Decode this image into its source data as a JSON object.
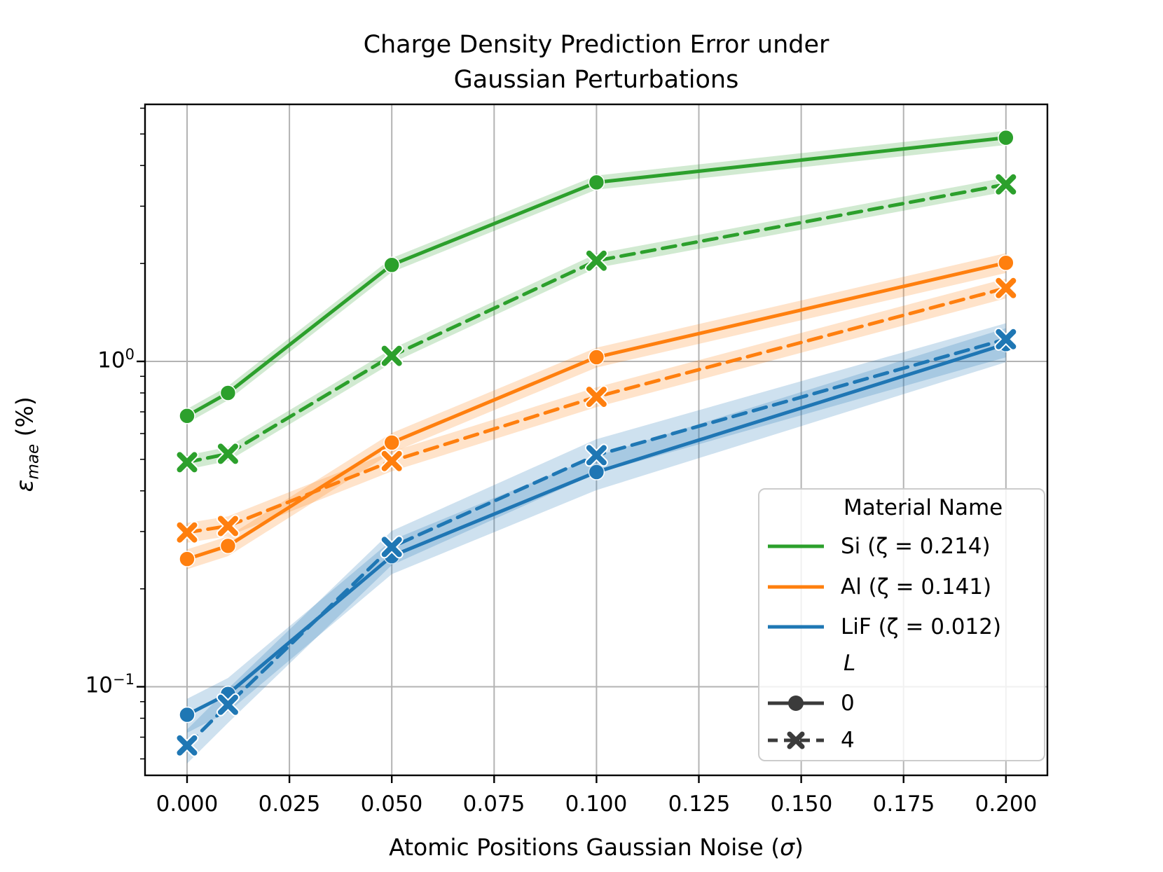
{
  "title": {
    "line1": "Charge Density Prediction Error under",
    "line2": "Gaussian Perturbations"
  },
  "axes": {
    "xlabel_prefix": "Atomic Positions Gaussian Noise (",
    "xlabel_sigma": "σ",
    "xlabel_suffix": ")",
    "ylabel_epsilon": "ε",
    "ylabel_sub": "mae",
    "ylabel_units": " (%)",
    "x_ticks": [
      "0.000",
      "0.025",
      "0.050",
      "0.075",
      "0.100",
      "0.125",
      "0.150",
      "0.175",
      "0.200"
    ],
    "x_tick_values": [
      0.0,
      0.025,
      0.05,
      0.075,
      0.1,
      0.125,
      0.15,
      0.175,
      0.2
    ],
    "y_ticks": [
      {
        "base": "10",
        "exp": "0",
        "value": 1.0
      },
      {
        "base": "10",
        "exp": "−1",
        "value": 0.1
      }
    ],
    "y_tick_values": [
      1.0,
      0.1
    ],
    "y_scale": "log",
    "xlim": [
      -0.01,
      0.21
    ],
    "ylim": [
      0.054,
      6.2
    ],
    "grid": true
  },
  "chart_data": {
    "type": "line",
    "x_label": "Atomic Positions Gaussian Noise (σ)",
    "y_label": "ε_mae (%)",
    "x_values": [
      0.0,
      0.01,
      0.05,
      0.1,
      0.2
    ],
    "materials": [
      {
        "name": "Si",
        "zeta": 0.214,
        "legend_label": "Si (ζ = 0.214)",
        "color": "#2ca02c",
        "band_ratio": 0.05,
        "L0": [
          0.68,
          0.8,
          1.98,
          3.55,
          4.87
        ],
        "L4": [
          0.49,
          0.52,
          1.04,
          2.04,
          3.5
        ]
      },
      {
        "name": "Al",
        "zeta": 0.141,
        "legend_label": "Al (ζ = 0.141)",
        "color": "#ff7f0e",
        "band_ratio": 0.07,
        "L0": [
          0.247,
          0.271,
          0.563,
          1.03,
          2.01
        ],
        "L4": [
          0.298,
          0.312,
          0.494,
          0.778,
          1.68
        ]
      },
      {
        "name": "LiF",
        "zeta": 0.012,
        "legend_label": "LiF (ζ = 0.012)",
        "color": "#1f77b4",
        "band_ratio": 0.12,
        "L0": [
          0.082,
          0.095,
          0.252,
          0.457,
          1.13
        ],
        "L4": [
          0.066,
          0.088,
          0.269,
          0.515,
          1.17
        ]
      }
    ],
    "line_styles": {
      "L0": {
        "label": "0",
        "linestyle": "solid",
        "marker": "circle"
      },
      "L4": {
        "label": "4",
        "linestyle": "dashed",
        "marker": "x"
      }
    }
  },
  "legend": {
    "material_title": "Material Name",
    "l_title": "L",
    "handle_color": "#3b3b3b"
  },
  "colors": {
    "grid": "#b3b3b3",
    "spine": "#000000",
    "background": "#ffffff"
  }
}
